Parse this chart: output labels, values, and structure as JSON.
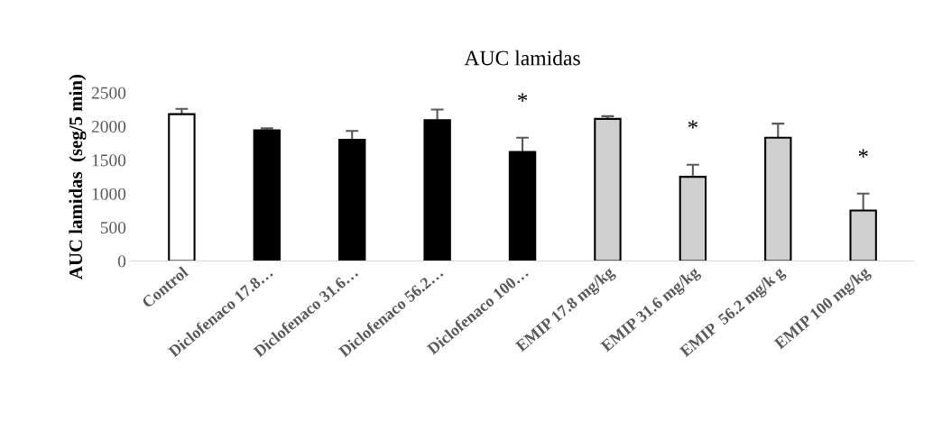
{
  "chart_data": {
    "type": "bar",
    "title": "AUC lamidas",
    "ylabel": "AUC lamidas  (seg/5 min)",
    "categories": [
      "Control",
      "Diclofenaco 17.8…",
      "Diclofenaco 31.6…",
      "Diclofenaco 56.2…",
      "Diclofenaco 100…",
      "EMIP 17.8 mg/kg",
      "EMIP 31.6 mg/kg",
      "EMIP  56.2 mg/k g",
      "EMIP 100 mg/kg"
    ],
    "values": [
      2180,
      1940,
      1800,
      2090,
      1620,
      2110,
      1250,
      1830,
      750
    ],
    "errors": [
      80,
      30,
      130,
      160,
      210,
      40,
      180,
      210,
      250
    ],
    "colors": [
      "#ffffff",
      "#000000",
      "#000000",
      "#000000",
      "#000000",
      "#d0d0d0",
      "#d0d0d0",
      "#d0d0d0",
      "#d0d0d0"
    ],
    "ylim": [
      0,
      2500
    ],
    "yticks": [
      0,
      500,
      1000,
      1500,
      2000,
      2500
    ],
    "grid": false,
    "value_labels": [
      null,
      null,
      null,
      null,
      "*",
      null,
      "*",
      null,
      "*"
    ]
  }
}
